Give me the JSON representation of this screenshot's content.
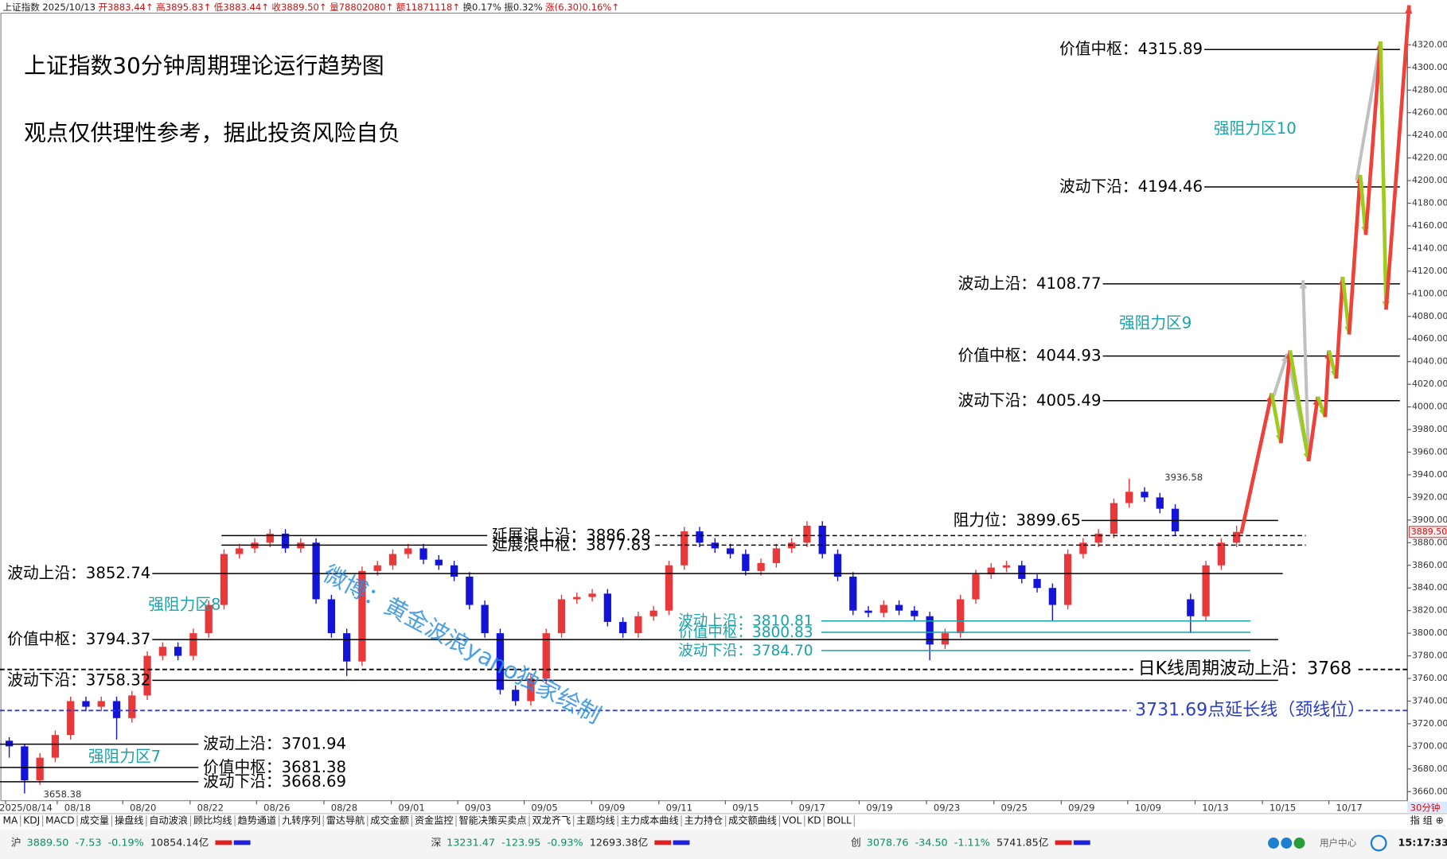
{
  "header": {
    "items": [
      "上证指数",
      "2025/10/13",
      "开3883.44↑",
      "高3895.83↑",
      "低3883.44↑",
      "收3889.50↑",
      "量78802080↑",
      "额11871118↑",
      "换0.17%",
      "振0.32%",
      "涨(6.30)0.16%↑"
    ]
  },
  "toolbar": {
    "tabs": [
      "MA",
      "KDJ",
      "MACD",
      "成交量",
      "操盘线",
      "自动波浪",
      "顾比均线",
      "趋势通道",
      "九转序列",
      "雷达导航",
      "成交金额",
      "资金监控",
      "智能决策买卖点",
      "双龙齐飞",
      "主题均线",
      "主力成本曲线",
      "主力持仓",
      "成交额曲线",
      "VOL",
      "KD",
      "BOLL"
    ],
    "period": "30分钟",
    "right": "指 组 ⊕"
  },
  "status_bar": {
    "markets": [
      {
        "name": "沪",
        "price": "3889.50",
        "change": "-7.53",
        "pct": "-0.19%",
        "amount": "10854.14亿"
      },
      {
        "name": "深",
        "price": "13231.47",
        "change": "-123.95",
        "pct": "-0.93%",
        "amount": "12693.38亿"
      },
      {
        "name": "创",
        "price": "3078.76",
        "change": "-34.50",
        "pct": "-1.11%",
        "amount": "5741.85亿"
      }
    ],
    "user": "用户中心",
    "time": "15:17:33"
  },
  "chart_data": {
    "type": "candlestick",
    "title": "上证指数30分钟周期理论运行趋势图",
    "subtitle": "观点仅供理性参考，据此投资风险自负",
    "watermark": "微博：黄金波浪yano独家绘制",
    "up_color": "#e8383a",
    "down_color": "#1414d8",
    "x_labels": [
      "2025/08/14",
      "08/18",
      "08/20",
      "08/22",
      "08/26",
      "08/28",
      "09/01",
      "09/03",
      "09/05",
      "09/09",
      "09/11",
      "09/15",
      "09/17",
      "09/19",
      "09/23",
      "09/25",
      "09/29",
      "10/09",
      "10/13",
      "10/15",
      "10/17"
    ],
    "ylim": [
      3652,
      4348
    ],
    "yticks": [
      {
        "value": 3660,
        "label": "3660.00"
      },
      {
        "value": 3680,
        "label": "3680.00"
      },
      {
        "value": 3700,
        "label": "3700.00"
      },
      {
        "value": 3720,
        "label": "3720.00"
      },
      {
        "value": 3740,
        "label": "3740.00"
      },
      {
        "value": 3760,
        "label": "3760.00"
      },
      {
        "value": 3780,
        "label": "3780.00"
      },
      {
        "value": 3800,
        "label": "3800.00"
      },
      {
        "value": 3820,
        "label": "3820.00"
      },
      {
        "value": 3840,
        "label": "3840.00"
      },
      {
        "value": 3860,
        "label": "3860.00"
      },
      {
        "value": 3880,
        "label": "3880.00"
      },
      {
        "value": 3900,
        "label": "3900.00"
      },
      {
        "value": 3920,
        "label": "3920.00"
      },
      {
        "value": 3940,
        "label": "3940.00"
      },
      {
        "value": 3960,
        "label": "3960.00"
      },
      {
        "value": 3980,
        "label": "3980.00"
      },
      {
        "value": 4000,
        "label": "4000.00"
      },
      {
        "value": 4020,
        "label": "4020.00"
      },
      {
        "value": 4040,
        "label": "4040.00"
      },
      {
        "value": 4060,
        "label": "4060.00"
      },
      {
        "value": 4080,
        "label": "4080.00"
      },
      {
        "value": 4100,
        "label": "4100.00"
      },
      {
        "value": 4120,
        "label": "4120.00"
      },
      {
        "value": 4140,
        "label": "4140.00"
      },
      {
        "value": 4160,
        "label": "4160.00"
      },
      {
        "value": 4180,
        "label": "4180.00"
      },
      {
        "value": 4200,
        "label": "4200.00"
      },
      {
        "value": 4220,
        "label": "4220.00"
      },
      {
        "value": 4240,
        "label": "4240.00"
      },
      {
        "value": 4260,
        "label": "4260.00"
      },
      {
        "value": 4280,
        "label": "4280.00"
      },
      {
        "value": 4300,
        "label": "4300.00"
      },
      {
        "value": 4320,
        "label": "4320.00"
      }
    ],
    "last_price": {
      "value": 3889.5,
      "label": "3889.50"
    },
    "extremes": [
      3936.58,
      3658.38
    ],
    "candles": [
      [
        3705,
        3708,
        3690,
        3700
      ],
      [
        3700,
        3702,
        3658.38,
        3670
      ],
      [
        3670,
        3694,
        3666,
        3690
      ],
      [
        3690,
        3714,
        3686,
        3710
      ],
      [
        3710,
        3744,
        3706,
        3740
      ],
      [
        3740,
        3744,
        3731,
        3735
      ],
      [
        3735,
        3744,
        3731,
        3740
      ],
      [
        3740,
        3744,
        3706,
        3725
      ],
      [
        3725,
        3749,
        3721,
        3745
      ],
      [
        3745,
        3784,
        3741,
        3780
      ],
      [
        3780,
        3792,
        3776,
        3788
      ],
      [
        3788,
        3792,
        3776,
        3780
      ],
      [
        3780,
        3804,
        3776,
        3800
      ],
      [
        3800,
        3829,
        3796,
        3825
      ],
      [
        3825,
        3874,
        3821,
        3870
      ],
      [
        3870,
        3879,
        3866,
        3875
      ],
      [
        3875,
        3884,
        3871,
        3880
      ],
      [
        3880,
        3892,
        3876,
        3888
      ],
      [
        3888,
        3892,
        3871,
        3875
      ],
      [
        3875,
        3884,
        3871,
        3880
      ],
      [
        3880,
        3884,
        3826,
        3830
      ],
      [
        3830,
        3834,
        3796,
        3800
      ],
      [
        3800,
        3804,
        3762,
        3775
      ],
      [
        3775,
        3859,
        3771,
        3855
      ],
      [
        3855,
        3864,
        3851,
        3860
      ],
      [
        3860,
        3874,
        3856,
        3870
      ],
      [
        3870,
        3879,
        3866,
        3875
      ],
      [
        3875,
        3879,
        3861,
        3865
      ],
      [
        3865,
        3869,
        3856,
        3860
      ],
      [
        3860,
        3864,
        3846,
        3850
      ],
      [
        3850,
        3854,
        3821,
        3825
      ],
      [
        3825,
        3829,
        3796,
        3800
      ],
      [
        3800,
        3804,
        3746,
        3750
      ],
      [
        3750,
        3754,
        3736,
        3740
      ],
      [
        3740,
        3764,
        3736,
        3760
      ],
      [
        3760,
        3804,
        3756,
        3800
      ],
      [
        3800,
        3834,
        3796,
        3830
      ],
      [
        3830,
        3836,
        3826,
        3832
      ],
      [
        3832,
        3839,
        3828,
        3835
      ],
      [
        3835,
        3839,
        3806,
        3810
      ],
      [
        3810,
        3814,
        3796,
        3800
      ],
      [
        3800,
        3819,
        3796,
        3815
      ],
      [
        3815,
        3824,
        3811,
        3820
      ],
      [
        3820,
        3864,
        3816,
        3860
      ],
      [
        3860,
        3894,
        3856,
        3890
      ],
      [
        3890,
        3894,
        3876,
        3880
      ],
      [
        3880,
        3884,
        3871,
        3875
      ],
      [
        3875,
        3879,
        3866,
        3870
      ],
      [
        3870,
        3874,
        3851,
        3855
      ],
      [
        3855,
        3866,
        3851,
        3862
      ],
      [
        3862,
        3879,
        3858,
        3875
      ],
      [
        3875,
        3884,
        3871,
        3880
      ],
      [
        3880,
        3899,
        3876,
        3895
      ],
      [
        3895,
        3899,
        3866,
        3870
      ],
      [
        3870,
        3874,
        3846,
        3850
      ],
      [
        3850,
        3854,
        3816,
        3820
      ],
      [
        3820,
        3824,
        3814,
        3818
      ],
      [
        3818,
        3829,
        3814,
        3825
      ],
      [
        3825,
        3829,
        3816,
        3820
      ],
      [
        3820,
        3824,
        3811,
        3815
      ],
      [
        3815,
        3819,
        3776,
        3790
      ],
      [
        3790,
        3804,
        3786,
        3800
      ],
      [
        3800,
        3834,
        3796,
        3830
      ],
      [
        3830,
        3856,
        3826,
        3852
      ],
      [
        3852,
        3862,
        3848,
        3858
      ],
      [
        3858,
        3864,
        3854,
        3860
      ],
      [
        3860,
        3864,
        3844,
        3848
      ],
      [
        3848,
        3852,
        3836,
        3840
      ],
      [
        3840,
        3844,
        3811,
        3825
      ],
      [
        3825,
        3874,
        3821,
        3870
      ],
      [
        3870,
        3884,
        3866,
        3880
      ],
      [
        3880,
        3892,
        3876,
        3888
      ],
      [
        3888,
        3919,
        3884,
        3915
      ],
      [
        3915,
        3936.58,
        3911,
        3925
      ],
      [
        3925,
        3929,
        3916,
        3920
      ],
      [
        3920,
        3924,
        3906,
        3910
      ],
      [
        3910,
        3914,
        3886,
        3890
      ],
      [
        3830,
        3835,
        3800,
        3815
      ],
      [
        3815,
        3864,
        3811,
        3860
      ],
      [
        3860,
        3884,
        3856,
        3880
      ],
      [
        3880,
        3895,
        3876,
        3889.5
      ]
    ],
    "levels": [
      {
        "name": "延展浪上沿：",
        "value": 3886.28,
        "color": "#000000"
      },
      {
        "name": "延展浪中枢：",
        "value": 3877.83,
        "color": "#000000"
      },
      {
        "name": "阻力位：",
        "value": 3899.65,
        "color": "#000000"
      },
      {
        "name": "波动上沿：",
        "value": 3852.74,
        "color": "#000000"
      },
      {
        "name": "价值中枢：",
        "value": 3794.37,
        "color": "#000000"
      },
      {
        "name": "波动下沿：",
        "value": 3758.32,
        "color": "#000000"
      },
      {
        "name": "日K线周期波动上沿：",
        "value": 3768,
        "color": "#000000",
        "dashed": true
      },
      {
        "value": 3731.69,
        "suffix": "点延长线（颈线位）",
        "color": "#2c3fc4",
        "dashed": true
      },
      {
        "name": "波动上沿：",
        "value": 3701.94,
        "color": "#000000"
      },
      {
        "name": "价值中枢：",
        "value": 3681.38,
        "color": "#000000"
      },
      {
        "name": "波动下沿：",
        "value": 3668.69,
        "color": "#000000"
      },
      {
        "name": "波动上沿：",
        "value": 3810.81,
        "color": "#1aa3a8"
      },
      {
        "name": "价值中枢：",
        "value": 3800.83,
        "color": "#1aa3a8"
      },
      {
        "name": "波动下沿：",
        "value": 3784.7,
        "value_label": "3784.70",
        "color": "#1aa3a8"
      },
      {
        "name": "波动下沿：",
        "value": 4005.49,
        "color": "#000000"
      },
      {
        "name": "价值中枢：",
        "value": 4044.93,
        "color": "#000000"
      },
      {
        "name": "波动上沿：",
        "value": 4108.77,
        "color": "#000000"
      },
      {
        "name": "波动下沿：",
        "value": 4194.46,
        "color": "#000000"
      },
      {
        "name": "价值中枢：",
        "value": 4315.89,
        "color": "#000000"
      }
    ],
    "zones": [
      "强阻力区10",
      "强阻力区9",
      "强阻力区8",
      "强阻力区7"
    ],
    "zone_color": "#1aa3a8",
    "projection": {
      "values": [
        3888,
        4012,
        3968,
        4050,
        3952,
        4009,
        3991,
        4050,
        4025,
        4115,
        4064,
        4205,
        4152,
        4323,
        4086,
        4355
      ],
      "up_color": "#f0403a",
      "down_color": "#9ccc1e"
    },
    "alt_projection": {
      "values": [
        4009,
        4047,
        3952,
        4112,
        null,
        4200,
        4323
      ],
      "color": "#c0c0c0"
    }
  }
}
